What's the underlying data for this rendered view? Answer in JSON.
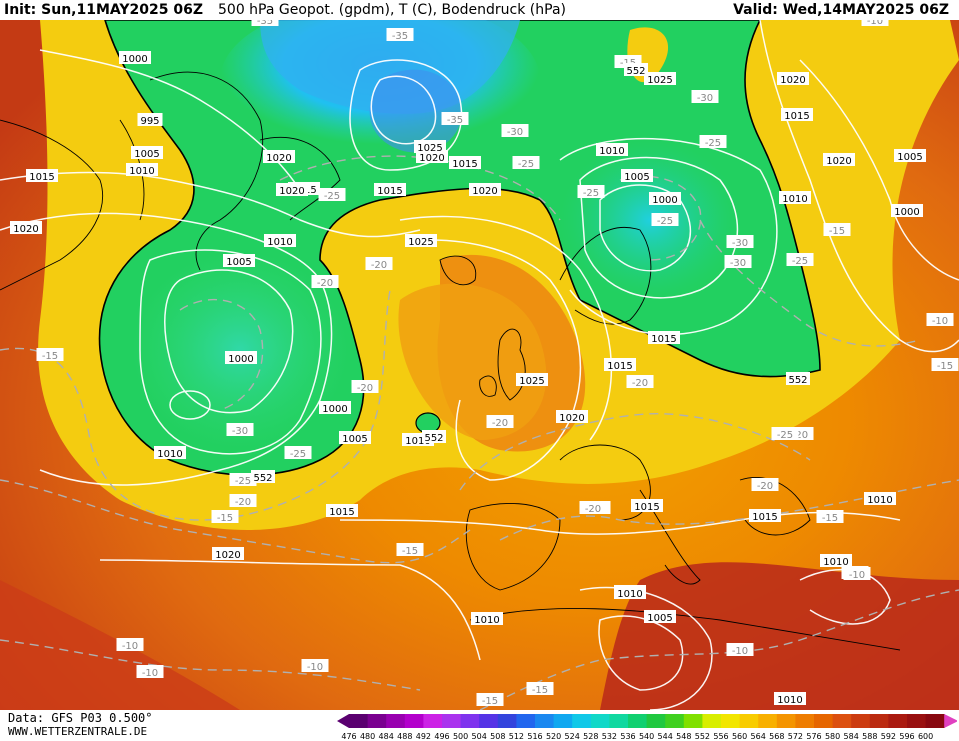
{
  "header": {
    "init": "Init: Sun,11MAY2025 06Z",
    "title": "500 hPa Geopot. (gpdm), T (C), Bodendruck (hPa)",
    "valid": "Valid: Wed,14MAY2025 06Z"
  },
  "footer": {
    "source": "Data: GFS P03 0.500°",
    "url": "WWW.WETTERZENTRALE.DE"
  },
  "legend": {
    "values": [
      "476",
      "480",
      "484",
      "488",
      "492",
      "496",
      "500",
      "504",
      "508",
      "512",
      "516",
      "520",
      "524",
      "528",
      "532",
      "536",
      "540",
      "544",
      "548",
      "552",
      "556",
      "560",
      "564",
      "568",
      "572",
      "576",
      "580",
      "584",
      "588",
      "592",
      "596",
      "600"
    ],
    "colors": [
      "#5a0070",
      "#7a0090",
      "#9900b0",
      "#b300cc",
      "#cc22e6",
      "#aa33ee",
      "#7f33ee",
      "#5533e6",
      "#3344dd",
      "#2266ee",
      "#1a88f0",
      "#10a8f0",
      "#10c8e8",
      "#10d8c8",
      "#10d8a0",
      "#10d070",
      "#20c840",
      "#40d020",
      "#80e000",
      "#d8ee00",
      "#f2e600",
      "#f8cc00",
      "#f8b000",
      "#f49400",
      "#ee7c00",
      "#e66600",
      "#dc5010",
      "#cc3c10",
      "#bb2a10",
      "#aa1a10",
      "#991010",
      "#880810"
    ],
    "end_color": "#e040c0"
  },
  "pressure_labels": [
    {
      "text": "1000",
      "color": "white"
    },
    {
      "text": "995",
      "color": "white"
    },
    {
      "text": "1005",
      "color": "white"
    },
    {
      "text": "1010",
      "color": "white"
    },
    {
      "text": "1015",
      "color": "white"
    },
    {
      "text": "1020",
      "color": "white"
    },
    {
      "text": "1020",
      "color": "white"
    },
    {
      "text": "1015",
      "color": "white"
    },
    {
      "text": "1010",
      "color": "white"
    },
    {
      "text": "1005",
      "color": "white"
    },
    {
      "text": "1000",
      "color": "white"
    },
    {
      "text": "1000",
      "color": "white"
    },
    {
      "text": "1005",
      "color": "white"
    },
    {
      "text": "1010",
      "color": "white"
    },
    {
      "text": "1010",
      "color": "white"
    },
    {
      "text": "1015",
      "color": "white"
    },
    {
      "text": "1020",
      "color": "white"
    },
    {
      "text": "1025",
      "color": "white"
    },
    {
      "text": "1020",
      "color": "white"
    },
    {
      "text": "1015",
      "color": "white"
    },
    {
      "text": "1025",
      "color": "white"
    },
    {
      "text": "1025",
      "color": "white"
    },
    {
      "text": "1020",
      "color": "white"
    },
    {
      "text": "1015",
      "color": "white"
    },
    {
      "text": "1020",
      "color": "white"
    },
    {
      "text": "1015",
      "color": "white"
    },
    {
      "text": "1010",
      "color": "white"
    },
    {
      "text": "1005",
      "color": "white"
    },
    {
      "text": "1000",
      "color": "white"
    },
    {
      "text": "1025",
      "color": "white"
    },
    {
      "text": "1020",
      "color": "white"
    },
    {
      "text": "1015",
      "color": "white"
    },
    {
      "text": "1010",
      "color": "white"
    },
    {
      "text": "1005",
      "color": "white"
    },
    {
      "text": "1000",
      "color": "white"
    },
    {
      "text": "1010",
      "color": "white"
    },
    {
      "text": "1015",
      "color": "white"
    },
    {
      "text": "1015",
      "color": "white"
    },
    {
      "text": "1010",
      "color": "white"
    },
    {
      "text": "1010",
      "color": "white"
    },
    {
      "text": "1005",
      "color": "white"
    },
    {
      "text": "1010",
      "color": "white"
    },
    {
      "text": "1015",
      "color": "white"
    },
    {
      "text": "1020",
      "color": "white"
    },
    {
      "text": "1020",
      "color": "white"
    },
    {
      "text": "1010",
      "color": "white"
    },
    {
      "text": "1010",
      "color": "white"
    }
  ],
  "temperature_labels": [
    "-35",
    "-35",
    "-25",
    "-30",
    "-35",
    "-30",
    "-25",
    "-25",
    "-25",
    "-30",
    "-25",
    "-30",
    "-25",
    "-20",
    "-20",
    "-20",
    "-20",
    "-15",
    "-25",
    "-30",
    "-25",
    "-20",
    "-20",
    "-15",
    "-15",
    "-15",
    "-20",
    "-20",
    "-25",
    "-20",
    "-15",
    "-15",
    "-10",
    "-10",
    "-10",
    "-10",
    "-10",
    "-15",
    "-10",
    "-10",
    "-15",
    "-10",
    "-15",
    "-15",
    "-20"
  ],
  "height_labels": [
    "552",
    "552",
    "552",
    "552"
  ]
}
